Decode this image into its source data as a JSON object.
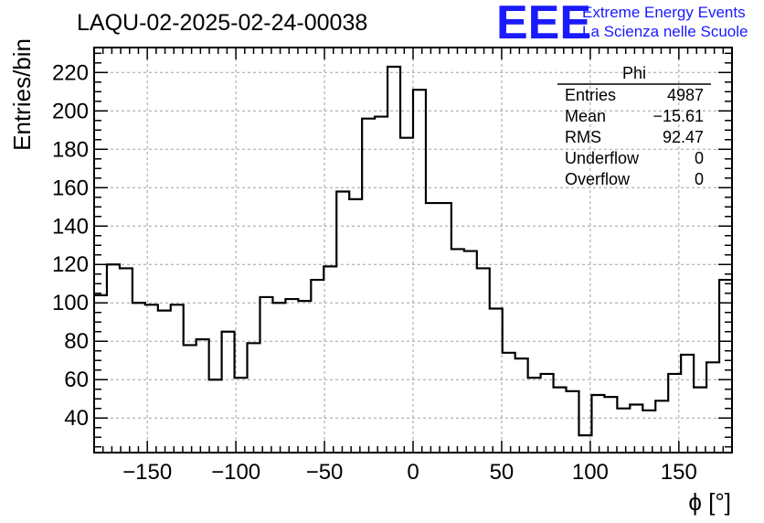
{
  "colors": {
    "line": "#000000",
    "grid": "#a0a0a0",
    "logo": "#1a1aff",
    "background": "#ffffff"
  },
  "logo": {
    "mark": "EEE",
    "line1": "Extreme Energy Events",
    "line2": "La Scienza nelle Scuole"
  },
  "stats": {
    "title": "Phi",
    "rows": [
      {
        "label": "Entries",
        "value": "4987"
      },
      {
        "label": "Mean",
        "value": "−15.61"
      },
      {
        "label": "RMS",
        "value": "92.47"
      },
      {
        "label": "Underflow",
        "value": "0"
      },
      {
        "label": "Overflow",
        "value": "0"
      }
    ]
  },
  "chart_data": {
    "type": "histogram",
    "title": "LAQU-02-2025-02-24-00038",
    "xlabel": "ϕ [°]",
    "ylabel": "Entries/bin",
    "xlim": [
      -180,
      180
    ],
    "ylim": [
      22,
      233
    ],
    "grid": true,
    "legend": "none",
    "bin_width": 7.2,
    "x_ticks": [
      -150,
      -100,
      -50,
      0,
      50,
      100,
      150
    ],
    "x_tick_labels": [
      "−150",
      "−100",
      "−50",
      "0",
      "50",
      "100",
      "150"
    ],
    "y_ticks": [
      40,
      60,
      80,
      100,
      120,
      140,
      160,
      180,
      200,
      220
    ],
    "y_tick_labels": [
      "40",
      "60",
      "80",
      "100",
      "120",
      "140",
      "160",
      "180",
      "200",
      "220"
    ],
    "values": [
      104,
      120,
      118,
      100,
      99,
      96,
      99,
      78,
      81,
      60,
      85,
      61,
      79,
      103,
      100,
      102,
      101,
      112,
      119,
      158,
      154,
      196,
      197,
      223,
      186,
      211,
      152,
      152,
      128,
      127,
      118,
      97,
      74,
      71,
      61,
      63,
      56,
      54,
      31,
      52,
      51,
      45,
      47,
      44,
      49,
      63,
      73,
      56,
      69,
      112
    ]
  }
}
